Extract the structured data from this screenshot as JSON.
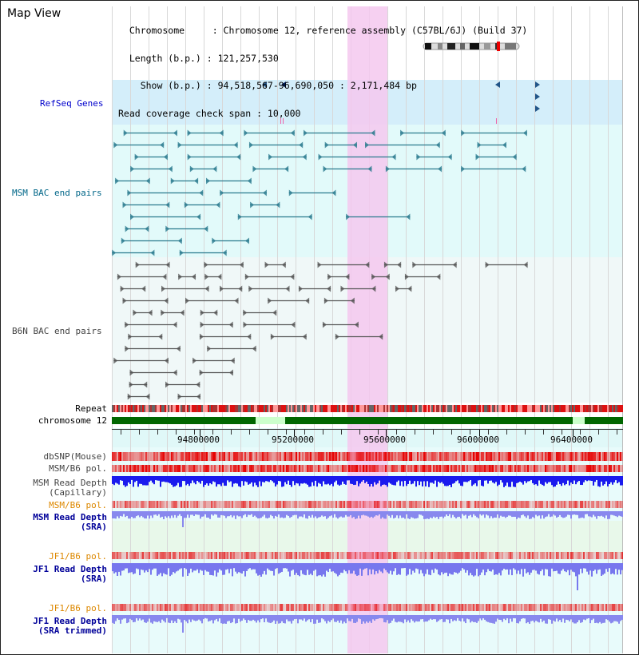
{
  "view_title": "Map View",
  "header": {
    "line1": "  Chromosome     : Chromosome 12, reference assembly (C57BL/6J) (Build 37)",
    "line2": "  Length (b.p.) : 121,257,530",
    "line3": "    Show (b.p.) : 94,518,567-96,690,050 : 2,171,484 bp",
    "line4": "Read coverage check span : 10,000"
  },
  "tracks": {
    "refseq": "RefSeq Genes",
    "msm_bac": "MSM BAC end pairs",
    "b6n_bac": "B6N BAC end pairs",
    "repeat": "Repeat",
    "chromosome": "chromosome 12",
    "dbsnp": "dbSNP(Mouse)",
    "msm_b6_pol_1": "MSM/B6 pol.",
    "msm_read_depth_cap": "MSM Read Depth\n(Capillary)",
    "msm_b6_pol_2": "MSM/B6 pol.",
    "msm_read_depth_sra": "MSM Read Depth\n(SRA)",
    "jf1_b6_pol_1": "JF1/B6 pol.",
    "jf1_read_depth_sra": "JF1 Read Depth\n(SRA)",
    "jf1_b6_pol_2": "JF1/B6 pol.",
    "jf1_read_depth_trim": "JF1 Read Depth\n(SRA trimmed)"
  },
  "axis": {
    "ticks": [
      "94800000",
      "95200000",
      "95600000",
      "96000000",
      "96400000"
    ]
  },
  "colors": {
    "refseq_label": "#0000cc",
    "msm_label": "#006688",
    "b6n_label": "#444444",
    "orange_label": "#dd8800",
    "blue_label": "#000099",
    "highlight": "#f5c8ee",
    "refseq_bg": "#d4eefa",
    "msm_bg": "#e2fafa",
    "b6n_bg": "#f0f8f8",
    "depth_blue": "#1a1aee",
    "depth_light": "#7777ee",
    "chrom_green": "#006600"
  }
}
